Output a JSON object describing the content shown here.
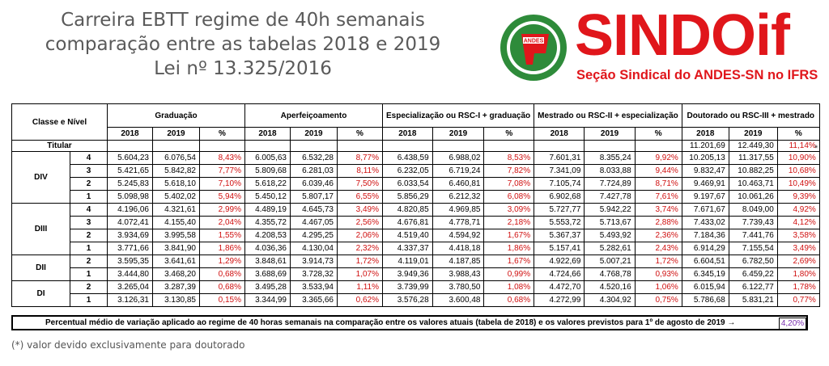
{
  "title": {
    "line1": "Carreira EBTT regime de 40h semanais",
    "line2": "comparação entre as tabelas 2018 e 2019",
    "line3": "Lei nº 13.325/2016"
  },
  "logo": {
    "emblem_text": "ANDES",
    "name": "SINDOif",
    "subtitle": "Seção Sindical do ANDES-SN no IFRS",
    "brand_color": "#e0161b",
    "emblem_green": "#2e8b3a"
  },
  "table": {
    "col_class": "Classe e Nível",
    "groups": [
      "Graduação",
      "Aperfeiçoamento",
      "Especialização ou RSC-I + graduação",
      "Mestrado ou RSC-II + especialização",
      "Doutorado ou RSC-III + mestrado"
    ],
    "year_a": "2018",
    "year_b": "2019",
    "pct": "%",
    "titular": {
      "label": "Titular",
      "v2018": "11.201,69",
      "v2019": "12.449,30",
      "pct": "11,14%",
      "star": "*"
    },
    "classes": [
      {
        "name": "DIV",
        "rows": [
          {
            "level": "4",
            "g": [
              "5.604,23",
              "6.076,54",
              "8,43%"
            ],
            "a": [
              "6.005,63",
              "6.532,28",
              "8,77%"
            ],
            "e": [
              "6.438,59",
              "6.988,02",
              "8,53%"
            ],
            "m": [
              "7.601,31",
              "8.355,24",
              "9,92%"
            ],
            "d": [
              "10.205,13",
              "11.317,55",
              "10,90%"
            ]
          },
          {
            "level": "3",
            "g": [
              "5.421,65",
              "5.842,82",
              "7,77%"
            ],
            "a": [
              "5.809,68",
              "6.281,03",
              "8,11%"
            ],
            "e": [
              "6.232,05",
              "6.719,24",
              "7,82%"
            ],
            "m": [
              "7.341,09",
              "8.033,88",
              "9,44%"
            ],
            "d": [
              "9.832,47",
              "10.882,25",
              "10,68%"
            ]
          },
          {
            "level": "2",
            "g": [
              "5.245,83",
              "5.618,10",
              "7,10%"
            ],
            "a": [
              "5.618,22",
              "6.039,46",
              "7,50%"
            ],
            "e": [
              "6.033,54",
              "6.460,81",
              "7,08%"
            ],
            "m": [
              "7.105,74",
              "7.724,89",
              "8,71%"
            ],
            "d": [
              "9.469,91",
              "10.463,71",
              "10,49%"
            ]
          },
          {
            "level": "1",
            "g": [
              "5.098,98",
              "5.402,02",
              "5,94%"
            ],
            "a": [
              "5.450,12",
              "5.807,17",
              "6,55%"
            ],
            "e": [
              "5.856,29",
              "6.212,32",
              "6,08%"
            ],
            "m": [
              "6.902,68",
              "7.427,78",
              "7,61%"
            ],
            "d": [
              "9.197,67",
              "10.061,26",
              "9,39%"
            ]
          }
        ]
      },
      {
        "name": "DIII",
        "rows": [
          {
            "level": "4",
            "g": [
              "4.196,06",
              "4.321,61",
              "2,99%"
            ],
            "a": [
              "4.489,19",
              "4.645,73",
              "3,49%"
            ],
            "e": [
              "4.820,85",
              "4.969,85",
              "3,09%"
            ],
            "m": [
              "5.727,77",
              "5.942,22",
              "3,74%"
            ],
            "d": [
              "7.671,67",
              "8.049,00",
              "4,92%"
            ]
          },
          {
            "level": "3",
            "g": [
              "4.072,41",
              "4.155,40",
              "2,04%"
            ],
            "a": [
              "4.355,72",
              "4.467,05",
              "2,56%"
            ],
            "e": [
              "4.676,81",
              "4.778,71",
              "2,18%"
            ],
            "m": [
              "5.553,72",
              "5.713,67",
              "2,88%"
            ],
            "d": [
              "7.433,02",
              "7.739,43",
              "4,12%"
            ]
          },
          {
            "level": "2",
            "g": [
              "3.934,69",
              "3.995,58",
              "1,55%"
            ],
            "a": [
              "4.208,53",
              "4.295,25",
              "2,06%"
            ],
            "e": [
              "4.519,40",
              "4.594,92",
              "1,67%"
            ],
            "m": [
              "5.367,37",
              "5.493,92",
              "2,36%"
            ],
            "d": [
              "7.184,36",
              "7.441,76",
              "3,58%"
            ]
          },
          {
            "level": "1",
            "g": [
              "3.771,66",
              "3.841,90",
              "1,86%"
            ],
            "a": [
              "4.036,36",
              "4.130,04",
              "2,32%"
            ],
            "e": [
              "4.337,37",
              "4.418,18",
              "1,86%"
            ],
            "m": [
              "5.157,41",
              "5.282,61",
              "2,43%"
            ],
            "d": [
              "6.914,29",
              "7.155,54",
              "3,49%"
            ]
          }
        ]
      },
      {
        "name": "DII",
        "rows": [
          {
            "level": "2",
            "g": [
              "3.595,35",
              "3.641,61",
              "1,29%"
            ],
            "a": [
              "3.848,61",
              "3.914,73",
              "1,72%"
            ],
            "e": [
              "4.119,01",
              "4.187,85",
              "1,67%"
            ],
            "m": [
              "4.922,69",
              "5.007,21",
              "1,72%"
            ],
            "d": [
              "6.604,51",
              "6.782,50",
              "2,69%"
            ]
          },
          {
            "level": "1",
            "g": [
              "3.444,80",
              "3.468,20",
              "0,68%"
            ],
            "a": [
              "3.688,69",
              "3.728,32",
              "1,07%"
            ],
            "e": [
              "3.949,36",
              "3.988,43",
              "0,99%"
            ],
            "m": [
              "4.724,66",
              "4.768,78",
              "0,93%"
            ],
            "d": [
              "6.345,19",
              "6.459,22",
              "1,80%"
            ]
          }
        ]
      },
      {
        "name": "DI",
        "rows": [
          {
            "level": "2",
            "g": [
              "3.265,04",
              "3.287,39",
              "0,68%"
            ],
            "a": [
              "3.495,28",
              "3.533,94",
              "1,11%"
            ],
            "e": [
              "3.739,99",
              "3.780,50",
              "1,08%"
            ],
            "m": [
              "4.472,70",
              "4.520,16",
              "1,06%"
            ],
            "d": [
              "6.015,94",
              "6.122,77",
              "1,78%"
            ]
          },
          {
            "level": "1",
            "g": [
              "3.126,31",
              "3.130,85",
              "0,15%"
            ],
            "a": [
              "3.344,99",
              "3.365,66",
              "0,62%"
            ],
            "e": [
              "3.576,28",
              "3.600,48",
              "0,68%"
            ],
            "m": [
              "4.272,99",
              "4.304,92",
              "0,75%"
            ],
            "d": [
              "5.786,68",
              "5.831,21",
              "0,77%"
            ]
          }
        ]
      }
    ]
  },
  "summary": {
    "text": "Percentual médio de variação aplicado ao regime de 40 horas semanais na comparação entre os valores atuais (tabela de 2018) e os valores previstos para 1º de agosto de 2019  →",
    "value": "4,20%"
  },
  "footnote": "(*) valor devido exclusivamente para doutorado",
  "colors": {
    "pct_red": "#d01010",
    "summary_value": "#7a2fb0",
    "title_gray": "#5a5a5a"
  }
}
